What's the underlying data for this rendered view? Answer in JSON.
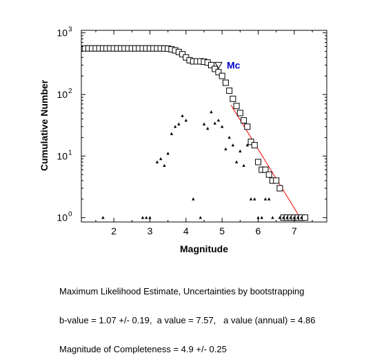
{
  "chart_data": {
    "type": "scatter",
    "xlabel": "Magnitude",
    "ylabel": "Cumulative Number",
    "xlim": [
      1.1,
      7.9
    ],
    "ylim": [
      0.85,
      1100
    ],
    "yscale": "log",
    "xticks": [
      2,
      3,
      4,
      5,
      6,
      7
    ],
    "xtick_labels": [
      "2",
      "3",
      "4",
      "5",
      "6",
      "7"
    ],
    "yticks": [
      {
        "value": 1,
        "base": "10",
        "exp": "0"
      },
      {
        "value": 10,
        "base": "10",
        "exp": "1"
      },
      {
        "value": 100,
        "base": "10",
        "exp": "2"
      },
      {
        "value": 1000,
        "base": "10",
        "exp": "3"
      }
    ],
    "grid": false,
    "series": [
      {
        "marker": "square",
        "color": "#000000",
        "x": [
          1.2,
          1.3,
          1.4,
          1.5,
          1.6,
          1.7,
          1.8,
          1.9,
          2.0,
          2.1,
          2.2,
          2.3,
          2.4,
          2.5,
          2.6,
          2.7,
          2.8,
          2.9,
          3.0,
          3.1,
          3.2,
          3.3,
          3.4,
          3.5,
          3.6,
          3.7,
          3.8,
          3.9,
          4.0,
          4.1,
          4.2,
          4.3,
          4.4,
          4.5,
          4.6,
          4.7,
          4.8,
          4.9,
          5.0,
          5.1,
          5.2,
          5.3,
          5.4,
          5.5,
          5.6,
          5.7,
          5.8,
          5.9,
          6.0,
          6.1,
          6.2,
          6.3,
          6.4,
          6.5,
          6.6,
          6.7,
          6.8,
          6.9,
          7.0,
          7.1,
          7.2,
          7.3
        ],
        "y": [
          560,
          560,
          560,
          560,
          560,
          560,
          560,
          560,
          560,
          560,
          560,
          560,
          560,
          560,
          560,
          560,
          560,
          560,
          560,
          560,
          560,
          560,
          558,
          555,
          540,
          520,
          490,
          450,
          400,
          360,
          345,
          345,
          345,
          340,
          330,
          300,
          260,
          230,
          200,
          155,
          115,
          85,
          65,
          50,
          38,
          30,
          17,
          15,
          8,
          6,
          6,
          5,
          4,
          4,
          3,
          1,
          1,
          1,
          1,
          1,
          1,
          1
        ]
      },
      {
        "marker": "triangle",
        "color": "#000000",
        "x": [
          1.7,
          2.8,
          2.9,
          3.0,
          3.2,
          3.3,
          3.4,
          3.5,
          3.6,
          3.7,
          3.8,
          3.9,
          4.0,
          4.2,
          4.4,
          4.5,
          4.6,
          4.7,
          4.8,
          4.9,
          5.0,
          5.1,
          5.2,
          5.3,
          5.4,
          5.5,
          5.6,
          5.7,
          5.8,
          5.9,
          6.0,
          6.1,
          6.2,
          6.3,
          6.4,
          6.6,
          6.7,
          6.8,
          6.9,
          7.0,
          7.1,
          7.2
        ],
        "y": [
          1,
          1,
          1,
          1,
          8,
          9,
          7,
          11,
          23,
          30,
          33,
          45,
          38,
          2,
          1,
          33,
          28,
          52,
          34,
          38,
          30,
          13,
          20,
          15,
          8,
          12,
          7,
          15,
          2,
          2,
          1,
          1,
          2,
          2,
          1,
          1,
          1,
          1,
          1,
          1,
          1,
          1
        ]
      }
    ],
    "fit_line": {
      "color": "#ff0000",
      "x": [
        5.25,
        7.22
      ],
      "y": [
        67,
        0.88
      ]
    },
    "annotations": [
      {
        "text": "Mc",
        "x": 4.9,
        "y": 300,
        "marker": "inverted-triangle",
        "color": "#0000cc"
      }
    ]
  },
  "caption": {
    "line1": "Maximum Likelihood Estimate, Uncertainties by bootstrapping",
    "line2": "b-value = 1.07 +/- 0.19,  a value = 7.57,   a value (annual) = 4.86",
    "line3": "Magnitude of Completeness = 4.9 +/- 0.25"
  }
}
